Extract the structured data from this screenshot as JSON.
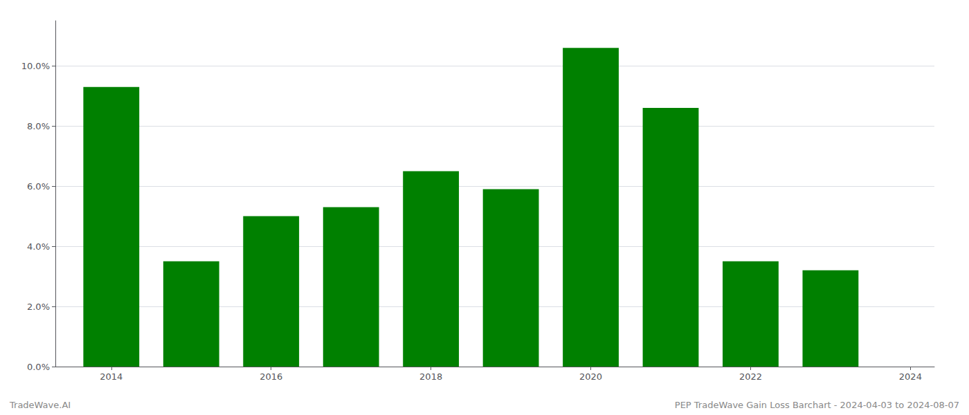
{
  "chart_data": {
    "type": "bar",
    "x": [
      2014,
      2015,
      2016,
      2017,
      2018,
      2019,
      2020,
      2021,
      2022,
      2023
    ],
    "values": [
      0.093,
      0.035,
      0.05,
      0.053,
      0.065,
      0.059,
      0.106,
      0.086,
      0.035,
      0.032
    ],
    "color": "#008000",
    "xlim": [
      2013.3,
      2024.3
    ],
    "xticks": [
      2014,
      2016,
      2018,
      2020,
      2022,
      2024
    ],
    "ylim": [
      0,
      0.115
    ],
    "yticks": [
      {
        "value": 0.0,
        "label": "0.0%"
      },
      {
        "value": 0.02,
        "label": "2.0%"
      },
      {
        "value": 0.04,
        "label": "4.0%"
      },
      {
        "value": 0.06,
        "label": "6.0%"
      },
      {
        "value": 0.08,
        "label": "8.0%"
      },
      {
        "value": 0.1,
        "label": "10.0%"
      }
    ],
    "grid": true,
    "annotations": [
      "TradeWave.AI",
      "PEP TradeWave Gain Loss Barchart - 2024-04-03 to 2024-08-07"
    ]
  }
}
